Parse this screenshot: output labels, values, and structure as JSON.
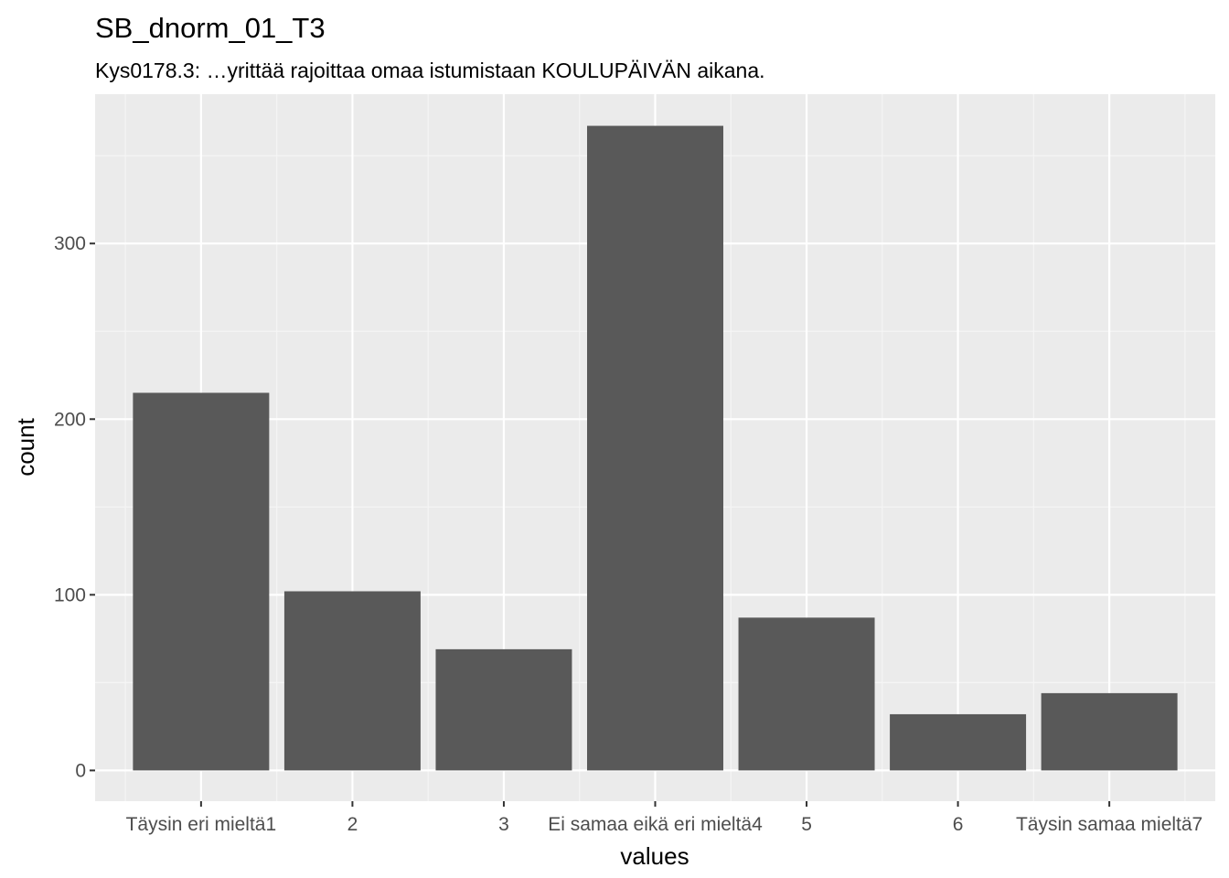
{
  "chart_data": {
    "type": "bar",
    "title": "SB_dnorm_01_T3",
    "subtitle": "Kys0178.3: …yrittää rajoittaa omaa istumistaan KOULUPÄIVÄN aikana.",
    "xlabel": "values",
    "ylabel": "count",
    "categories": [
      "Täysin eri mieltä1",
      "2",
      "3",
      "Ei samaa eikä eri mieltä4",
      "5",
      "6",
      "Täysin samaa mieltä7"
    ],
    "values": [
      215,
      102,
      69,
      367,
      87,
      32,
      44
    ],
    "ylim": [
      -17.5,
      385
    ],
    "y_ticks": [
      0,
      100,
      200,
      300
    ],
    "y_tick_labels": [
      "0",
      "100",
      "200",
      "300"
    ],
    "grid": true,
    "legend": "none",
    "colors": {
      "panel_background": "#ebebeb",
      "grid_major": "#ffffff",
      "grid_minor": "#f5f5f5",
      "bar_fill": "#595959",
      "tick_text": "#4d4d4d",
      "tick_mark": "#333333"
    }
  }
}
